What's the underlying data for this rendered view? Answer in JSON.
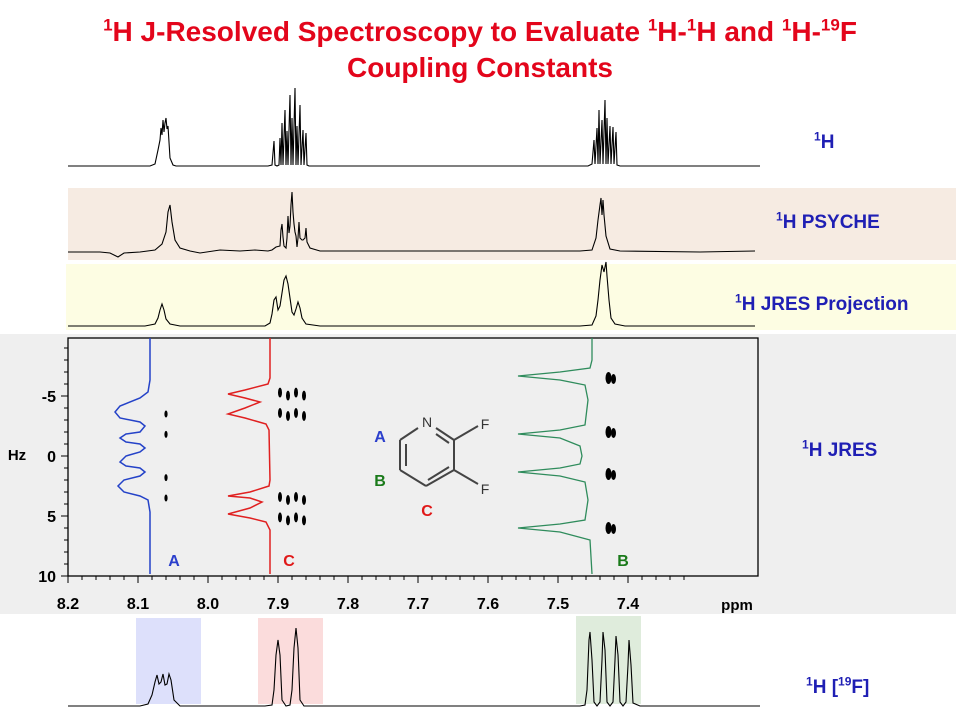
{
  "title": {
    "p1": "H J-Resolved Spectroscopy to Evaluate ",
    "p2": "H-",
    "p3": "H and ",
    "p4": "H-",
    "p5": "F",
    "line2": "Coupling Constants",
    "sup1": "1",
    "sup19": "19"
  },
  "labels": {
    "h1": {
      "sup": "1",
      "text": "H"
    },
    "psyche": {
      "sup": "1",
      "text": "H PSYCHE"
    },
    "jres_proj": {
      "sup": "1",
      "text": "H JRES Projection"
    },
    "jres": {
      "sup": "1",
      "text": "H JRES"
    },
    "hf": {
      "sup": "1",
      "pre": "H [",
      "sup2": "19",
      "post": "F]"
    }
  },
  "molecule": {
    "N": "N",
    "F1": "F",
    "F2": "F",
    "A": "A",
    "B": "B",
    "C": "C"
  },
  "colors": {
    "title": "#e3051b",
    "label": "#1f1fb4",
    "A": "#2b3fcc",
    "B": "#1a7a1a",
    "C": "#e01818",
    "traceA": "#2442c8",
    "traceB": "#2f8c5c",
    "traceC": "#e02020",
    "band_psyche": "#f6ebe2",
    "band_proj": "#fdfde3",
    "band_jres": "#efefef",
    "hl_A": "#dde0fb",
    "hl_C": "#fbdcdc",
    "hl_B": "#dfecdc"
  },
  "chart_data": {
    "type": "2d-nmr",
    "x_axis": {
      "label": "ppm",
      "ticks": [
        "8.2",
        "8.1",
        "8.0",
        "7.9",
        "7.8",
        "7.7",
        "7.6",
        "7.5",
        "7.4"
      ],
      "range": [
        8.2,
        7.32
      ],
      "reversed": true
    },
    "y_axis": {
      "label": "Hz",
      "ticks": [
        "-5",
        "0",
        "5",
        "10"
      ],
      "range": [
        -10,
        10
      ]
    },
    "multiplets": [
      {
        "name": "A",
        "shift_ppm": 8.06,
        "f1_offsets_hz": [
          -3.5,
          -1.8,
          1.8,
          3.5
        ],
        "color": "#2b3fcc"
      },
      {
        "name": "C",
        "shift_ppm": 7.88,
        "f1_offsets_hz": [
          -5.2,
          -3.5,
          3.5,
          5.2
        ],
        "color": "#e01818"
      },
      {
        "name": "B",
        "shift_ppm": 7.425,
        "f1_offsets_hz": [
          -6.5,
          -2.0,
          1.5,
          6.0
        ],
        "color": "#1a7a1a"
      }
    ],
    "panel_letters": [
      "A",
      "C",
      "B"
    ]
  }
}
